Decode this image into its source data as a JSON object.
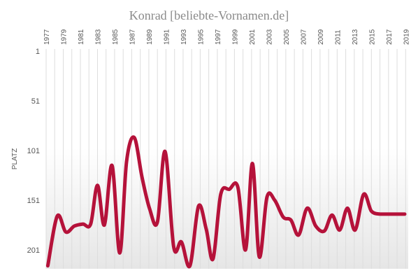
{
  "chart_data": {
    "type": "line",
    "title": "Konrad  [beliebte-Vornamen.de]",
    "xlabel": "",
    "ylabel": "PLATZ",
    "y_axis_inverted": true,
    "ylim": [
      1,
      220
    ],
    "yticks": [
      1,
      51,
      101,
      151,
      201
    ],
    "xlim": [
      1977,
      2019.3
    ],
    "xticks": [
      1977,
      1979,
      1981,
      1983,
      1985,
      1987,
      1989,
      1991,
      1993,
      1995,
      1997,
      1999,
      2001,
      2003,
      2005,
      2007,
      2009,
      2011,
      2013,
      2015,
      2017,
      2019
    ],
    "grid": "vertical",
    "line_color": "#b5123a",
    "series": [
      {
        "name": "",
        "points": [
          [
            1977.2,
            217
          ],
          [
            1978.3,
            167
          ],
          [
            1979.3,
            183
          ],
          [
            1980.3,
            177
          ],
          [
            1981.3,
            175
          ],
          [
            1982.2,
            175
          ],
          [
            1983.0,
            136
          ],
          [
            1983.8,
            176
          ],
          [
            1984.7,
            116
          ],
          [
            1985.6,
            204
          ],
          [
            1986.4,
            112
          ],
          [
            1987.3,
            88
          ],
          [
            1988.2,
            128
          ],
          [
            1989.1,
            160
          ],
          [
            1990.0,
            173
          ],
          [
            1990.9,
            102
          ],
          [
            1991.9,
            198
          ],
          [
            1992.8,
            193
          ],
          [
            1993.8,
            217
          ],
          [
            1994.8,
            157
          ],
          [
            1995.7,
            180
          ],
          [
            1996.5,
            210
          ],
          [
            1997.4,
            145
          ],
          [
            1998.4,
            140
          ],
          [
            1999.4,
            138
          ],
          [
            2000.3,
            201
          ],
          [
            2001.1,
            114
          ],
          [
            2001.9,
            208
          ],
          [
            2002.8,
            148
          ],
          [
            2003.7,
            151
          ],
          [
            2004.7,
            168
          ],
          [
            2005.6,
            171
          ],
          [
            2006.5,
            186
          ],
          [
            2007.5,
            159
          ],
          [
            2008.5,
            177
          ],
          [
            2009.5,
            182
          ],
          [
            2010.4,
            166
          ],
          [
            2011.3,
            181
          ],
          [
            2012.2,
            159
          ],
          [
            2013.1,
            181
          ],
          [
            2014.1,
            145
          ],
          [
            2015.0,
            162
          ],
          [
            2016.0,
            165
          ]
        ]
      }
    ]
  }
}
